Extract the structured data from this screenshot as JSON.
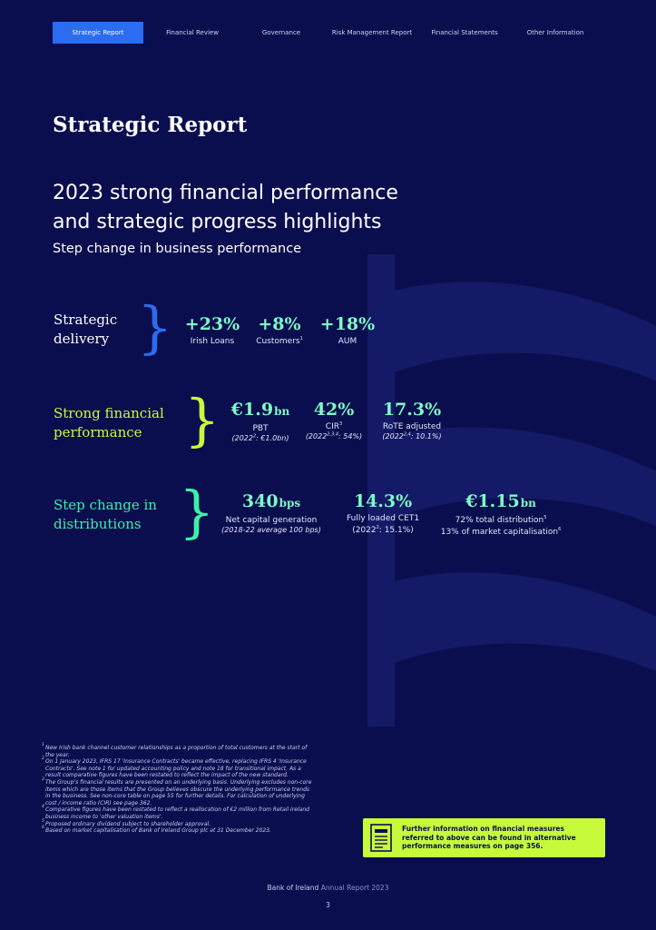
{
  "nav": {
    "tabs": [
      {
        "label": "Strategic Report",
        "active": true
      },
      {
        "label": "Financial Review",
        "active": false
      },
      {
        "label": "Governance",
        "active": false
      },
      {
        "label": "Risk Management Report",
        "active": false
      },
      {
        "label": "Financial Statements",
        "active": false
      },
      {
        "label": "Other Information",
        "active": false
      }
    ]
  },
  "page": {
    "title": "Strategic Report",
    "headline_line1": "2023 strong financial performance",
    "headline_line2": "and strategic progress highlights",
    "subheadline": "Step change in business performance"
  },
  "colors": {
    "background": "#0b0e4e",
    "nav_active": "#2b6cf0",
    "metric_value": "#7dfbc6",
    "brace_blue": "#2b6cf0",
    "lime": "#c8fa3c",
    "mint": "#3cf0a8"
  },
  "sections": {
    "strategic": {
      "line1": "Strategic",
      "line2": "delivery",
      "metrics": [
        {
          "value": "+23%",
          "label": "Irish Loans"
        },
        {
          "value": "+8%",
          "label": "Customers",
          "sup": "1"
        },
        {
          "value": "+18%",
          "label": "AUM"
        }
      ]
    },
    "financial": {
      "line1": "Strong financial",
      "line2": "performance",
      "metrics": [
        {
          "value": "€1.9",
          "unit": "bn",
          "label": "PBT",
          "sub_pre": "(2022",
          "sub_sup": "2",
          "sub_post": ": €1.0bn)"
        },
        {
          "value": "42%",
          "label": "CIR",
          "label_sup": "3",
          "sub_pre": "(2022",
          "sub_sup": "2,3,4",
          "sub_post": ": 54%)"
        },
        {
          "value": "17.3%",
          "label": "RoTE adjusted",
          "sub_pre": "(2022",
          "sub_sup": "2,4",
          "sub_post": ": 10.1%)"
        }
      ]
    },
    "distributions": {
      "line1": "Step change in",
      "line2": "distributions",
      "metrics": [
        {
          "value": "340",
          "unit": "bps",
          "label": "Net capital generation",
          "sub": "(2018-22 average 100 bps)"
        },
        {
          "value": "14.3%",
          "label": "Fully loaded CET1",
          "sub_pre": "(2022",
          "sub_sup": "2",
          "sub_post": ": 15.1%)"
        },
        {
          "value": "€1.15",
          "unit": "bn",
          "label": "72% total distribution",
          "label_sup": "5",
          "label2": "13% of market capitalisation",
          "label2_sup": "6"
        }
      ]
    }
  },
  "footnotes": [
    {
      "num": "1",
      "text": "New Irish bank channel customer relationships as a proportion of total customers at the start of the year."
    },
    {
      "num": "2",
      "text": "On 1 January 2023, IFRS 17 'Insurance Contracts' became effective, replacing IFRS 4 'Insurance Contracts'. See note 1 for updated accounting policy and note 18 for transitional impact. As a result comparative figures have been restated to reflect the impact of the new standard."
    },
    {
      "num": "3",
      "text": "The Group's financial results are presented on an underlying basis. Underlying excludes non-core items which are those items that the Group believes obscure the underlying performance trends in the business. See non-core table on page 55 for further details. For calculation of underlying cost / income ratio (CIR) see page 362."
    },
    {
      "num": "4",
      "text": "Comparative figures have been restated to reflect a reallocation of €2 million from Retail Ireland business income to 'other valuation items'."
    },
    {
      "num": "5",
      "text": "Proposed ordinary dividend subject to shareholder approval."
    },
    {
      "num": "6",
      "text": "Based on market capitalisation of Bank of Ireland Group plc at 31 December 2023."
    }
  ],
  "callout": {
    "icon": "document-icon",
    "text": "Further information on financial measures referred to above can be found in alternative performance measures on page 356."
  },
  "footer": {
    "brand": "Bank of Ireland",
    "report": "Annual Report 2023",
    "page_number": "3"
  }
}
